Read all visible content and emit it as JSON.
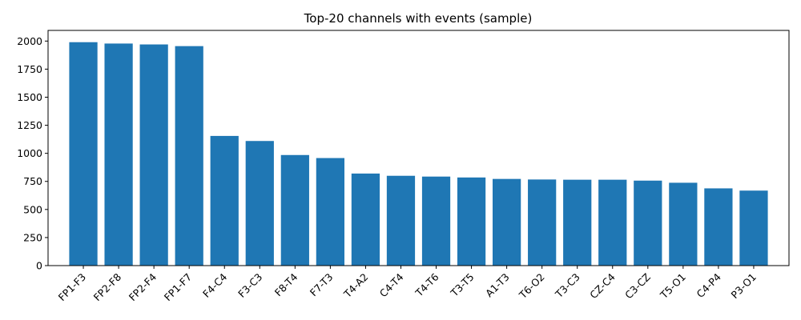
{
  "chart_data": {
    "type": "bar",
    "title": "Top-20 channels with events (sample)",
    "xlabel": "",
    "ylabel": "",
    "categories": [
      "FP1-F3",
      "FP2-F8",
      "FP2-F4",
      "FP1-F7",
      "F4-C4",
      "F3-C3",
      "F8-T4",
      "F7-T3",
      "T4-A2",
      "C4-T4",
      "T4-T6",
      "T3-T5",
      "A1-T3",
      "T6-O2",
      "T3-C3",
      "CZ-C4",
      "C3-CZ",
      "T5-O1",
      "C4-P4",
      "P3-O1"
    ],
    "values": [
      1990,
      1978,
      1970,
      1955,
      1155,
      1110,
      985,
      958,
      820,
      800,
      793,
      785,
      772,
      767,
      765,
      765,
      757,
      738,
      688,
      668
    ],
    "ylim": [
      0,
      2095
    ],
    "yticks": [
      0,
      250,
      500,
      750,
      1000,
      1250,
      1500,
      1750,
      2000
    ],
    "grid": false,
    "bar_color": "#1f77b4"
  }
}
